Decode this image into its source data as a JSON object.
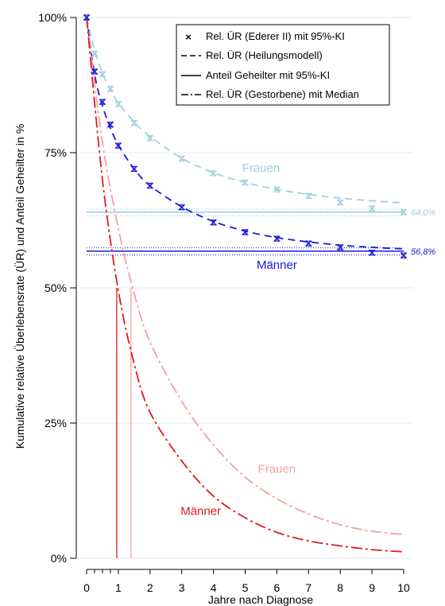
{
  "chart_data": {
    "type": "line",
    "ylabel": "Kumulative relative Überlebensrate (ÜR) und Anteil Geheilter in %",
    "xlabel": "Jahre nach Diagnose",
    "x_ticks": [
      "0",
      "1",
      "2",
      "3",
      "4",
      "5",
      "6",
      "7",
      "8",
      "9",
      "10"
    ],
    "y_ticks": [
      "0%",
      "25%",
      "50%",
      "75%",
      "100%"
    ],
    "xlim": [
      0,
      10
    ],
    "ylim": [
      0,
      100
    ],
    "grid": "horizontal",
    "legend": {
      "placement": "top-right",
      "entries": [
        "Rel. ÜR (Ederer II) mit 95%-KI",
        "Rel. ÜR (Heilungsmodell)",
        "Anteil Geheilter mit 95%-KI",
        "Rel. ÜR (Gestorbene) mit Median"
      ]
    },
    "colors": {
      "frauen_survival": "#9ecfe0",
      "maenner_survival": "#1a1adb",
      "frauen_dead": "#f4a0a0",
      "maenner_dead": "#e41a1a",
      "axis": "#000000",
      "grid": "#dcecf3"
    },
    "series": [
      {
        "name": "Frauen",
        "kind": "ederer_points",
        "x": [
          0,
          0.25,
          0.5,
          0.75,
          1,
          1.5,
          2,
          3,
          4,
          5,
          6,
          7,
          8,
          9,
          10
        ],
        "values": [
          100,
          93.3,
          89.5,
          86.8,
          84.0,
          80.5,
          77.7,
          73.9,
          71.2,
          69.5,
          68.2,
          67.0,
          65.8,
          64.7,
          64.0
        ]
      },
      {
        "name": "Frauen",
        "kind": "cure_model",
        "x": [
          0,
          0.25,
          0.5,
          0.75,
          1,
          1.5,
          2,
          3,
          4,
          5,
          6,
          7,
          8,
          9,
          10
        ],
        "values": [
          100,
          94.0,
          89.8,
          86.6,
          84.2,
          80.7,
          78.0,
          74.0,
          71.3,
          69.5,
          68.2,
          67.3,
          66.6,
          66.1,
          65.7
        ]
      },
      {
        "name": "Frauen",
        "kind": "cured_fraction",
        "value": 64.0,
        "ci": [
          63.3,
          64.6
        ],
        "label": "64,0%"
      },
      {
        "name": "Männer",
        "kind": "ederer_points",
        "x": [
          0,
          0.25,
          0.5,
          0.75,
          1,
          1.5,
          2,
          3,
          4,
          5,
          6,
          7,
          8,
          9,
          10
        ],
        "values": [
          100,
          90.0,
          84.4,
          80.2,
          76.3,
          72.0,
          68.9,
          64.9,
          62.1,
          60.3,
          59.1,
          58.2,
          57.5,
          56.5,
          56.0
        ]
      },
      {
        "name": "Männer",
        "kind": "cure_model",
        "x": [
          0,
          0.25,
          0.5,
          0.75,
          1,
          1.5,
          2,
          3,
          4,
          5,
          6,
          7,
          8,
          9,
          10
        ],
        "values": [
          100,
          89.5,
          83.7,
          79.6,
          76.4,
          72.0,
          68.9,
          65.0,
          62.3,
          60.5,
          59.3,
          58.5,
          57.9,
          57.5,
          57.2
        ]
      },
      {
        "name": "Männer",
        "kind": "cured_fraction",
        "value": 56.8,
        "ci": [
          56.1,
          57.4
        ],
        "label": "56,8%"
      },
      {
        "name": "Frauen",
        "kind": "dead_survival",
        "x": [
          0,
          0.5,
          1,
          1.5,
          2,
          3,
          4,
          5,
          6,
          7,
          8,
          9,
          10
        ],
        "values": [
          100,
          77,
          61,
          49,
          40,
          29,
          21,
          15,
          11,
          8.2,
          6.2,
          5.0,
          4.4
        ],
        "median": 1.4
      },
      {
        "name": "Männer",
        "kind": "dead_survival",
        "x": [
          0,
          0.5,
          1,
          1.5,
          2,
          3,
          4,
          5,
          6,
          7,
          8,
          9,
          10
        ],
        "values": [
          100,
          70,
          49.5,
          36,
          27,
          18,
          11.5,
          7.5,
          4.8,
          3.2,
          2.3,
          1.6,
          1.2
        ],
        "median": 0.95
      }
    ],
    "annotations": [
      {
        "text": "Frauen",
        "series": "frauen_survival",
        "x": 5.5,
        "y": 71.5
      },
      {
        "text": "Männer",
        "series": "maenner_survival",
        "x": 6.0,
        "y": 53.5
      },
      {
        "text": "Frauen",
        "series": "frauen_dead",
        "x": 6.0,
        "y": 15.8
      },
      {
        "text": "Männer",
        "series": "maenner_dead",
        "x": 3.6,
        "y": 8.0
      }
    ]
  }
}
